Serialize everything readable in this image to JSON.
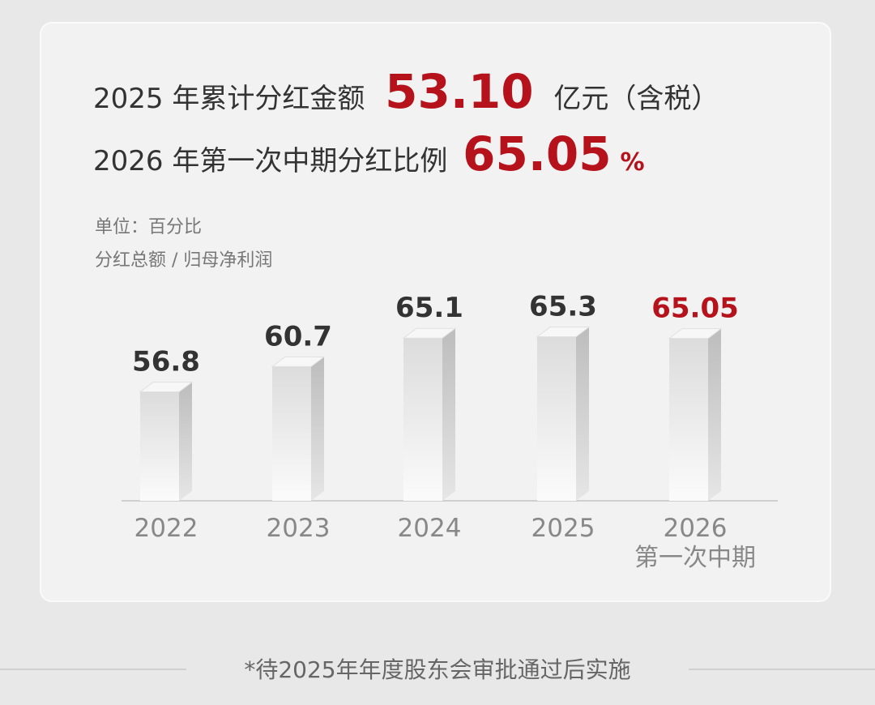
{
  "headline": {
    "line1_prefix": "2025 年累计分红金额",
    "line1_amount": "53.10",
    "line1_suffix": "亿元（含税）",
    "line2_prefix": "2026 年第一次中期分红比例",
    "line2_ratio": "65.05",
    "line2_suffix": "%"
  },
  "chart_data": {
    "type": "bar",
    "unit_label": "单位：百分比",
    "metric_label": "分红总额 / 归母净利润",
    "categories": [
      "2022",
      "2023",
      "2024",
      "2025",
      "2026"
    ],
    "category_notes": [
      null,
      null,
      null,
      null,
      "第一次中期"
    ],
    "values": [
      56.8,
      60.7,
      65.1,
      65.3,
      65.05
    ],
    "label_colors": [
      "#333333",
      "#333333",
      "#333333",
      "#333333",
      "#b5121b"
    ],
    "color": "#e4e4e4",
    "ylim": [
      40,
      76
    ]
  },
  "footnote": "*待2025年年度股东会审批通过后实施"
}
